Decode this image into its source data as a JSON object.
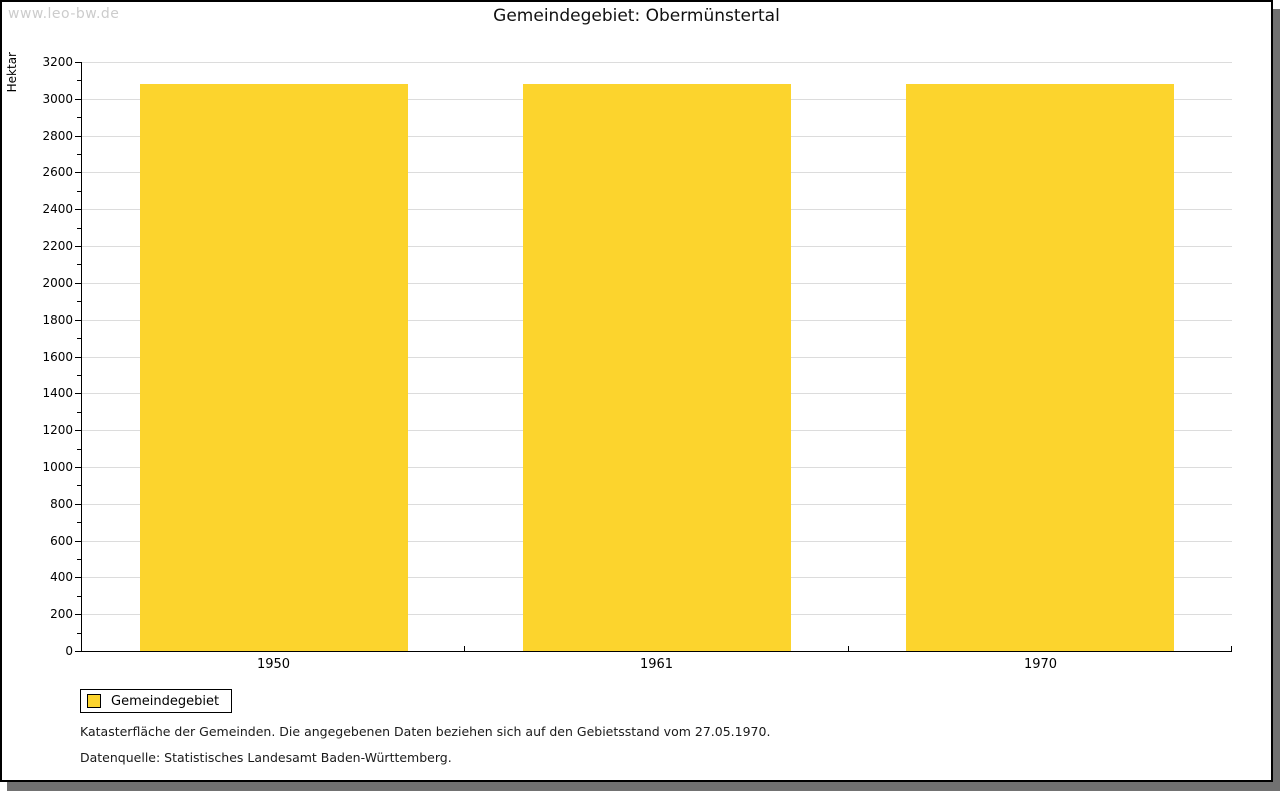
{
  "watermark": "www.leo-bw.de",
  "title": "Gemeindegebiet: Obermünstertal",
  "colors": {
    "bar": "#FCD42D",
    "grid": "#DCDCDC",
    "axis": "#000000",
    "watermark": "#CCCCCC",
    "shadow": "#717171"
  },
  "chart_data": {
    "type": "bar",
    "title": "Gemeindegebiet: Obermünstertal",
    "categories": [
      "1950",
      "1961",
      "1970"
    ],
    "series": [
      {
        "name": "Gemeindegebiet",
        "color": "#FCD42D",
        "values": [
          3080,
          3080,
          3080
        ]
      }
    ],
    "xlabel": "",
    "ylabel": "Hektar",
    "ylim": [
      0,
      3200
    ],
    "ytick_step": 200,
    "minor_tick_step": 100,
    "grid": true,
    "legend_position": "bottom-left"
  },
  "legend": {
    "items": [
      {
        "label": "Gemeindegebiet",
        "color": "#FCD42D"
      }
    ]
  },
  "footer": {
    "line1": "Katasterfläche der Gemeinden. Die angegebenen Daten beziehen sich auf den Gebietsstand vom 27.05.1970.",
    "line2": "Datenquelle: Statistisches Landesamt Baden-Württemberg."
  }
}
